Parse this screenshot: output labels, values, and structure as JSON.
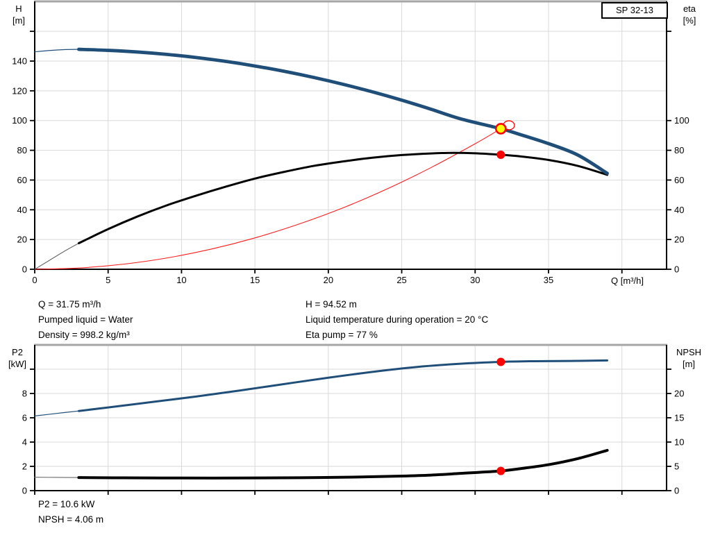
{
  "labels": {
    "model": "SP 32-13",
    "h_axis": [
      "H",
      "[m]"
    ],
    "eta_axis": [
      "eta",
      "[%]"
    ],
    "q_axis": "Q [m³/h]",
    "p2_axis": [
      "P2",
      "[kW]"
    ],
    "npsh_axis": [
      "NPSH",
      "[m]"
    ]
  },
  "colors": {
    "curve_blue": "#1F4E79",
    "curve_black": "#000000",
    "curve_red": "#ff1a1a",
    "marker_red": "#ff0000",
    "marker_yellow": "#ffff00",
    "grid": "#d9d9d9",
    "top_border": "#a6a6a6",
    "axis": "#000000"
  },
  "info": {
    "top_left": [
      "Q = 31.75 m³/h",
      "Pumped liquid = Water",
      "Density = 998.2 kg/m³"
    ],
    "top_right": [
      "H = 94.52 m",
      "Liquid temperature during operation = 20 °C",
      "Eta pump = 77 %"
    ],
    "bottom": [
      "P2 = 10.6 kW",
      "NPSH = 4.06 m"
    ]
  },
  "chart_data": [
    {
      "type": "line",
      "title": "SP 32-13 head and efficiency curves",
      "xlabel": "Q [m³/h]",
      "ylabel_left": "H [m]",
      "ylabel_right": "eta [%]",
      "x_range": [
        0,
        43
      ],
      "left_range": [
        0,
        180
      ],
      "right_range": [
        0,
        180
      ],
      "grid": true,
      "x_gridlines": [
        5,
        10,
        15,
        20,
        25,
        30,
        35,
        40
      ],
      "y_gridlines": [
        20,
        40,
        60,
        80,
        100,
        120,
        140,
        160
      ],
      "x_ticks": [
        {
          "q": 0,
          "label": "0"
        },
        {
          "q": 5,
          "label": "5"
        },
        {
          "q": 10,
          "label": "10"
        },
        {
          "q": 15,
          "label": "15"
        },
        {
          "q": 20,
          "label": "20"
        },
        {
          "q": 25,
          "label": "25"
        },
        {
          "q": 30,
          "label": "30"
        },
        {
          "q": 35,
          "label": "35"
        },
        {
          "q": 40
        }
      ],
      "left_ticks": [
        {
          "v": 0,
          "label": "0"
        },
        {
          "v": 20,
          "label": "20"
        },
        {
          "v": 40,
          "label": "40"
        },
        {
          "v": 60,
          "label": "60"
        },
        {
          "v": 80,
          "label": "80"
        },
        {
          "v": 100,
          "label": "100"
        },
        {
          "v": 120,
          "label": "120"
        },
        {
          "v": 140,
          "label": "140"
        },
        {
          "v": 160
        }
      ],
      "right_ticks": [
        {
          "v": 0,
          "label": "0"
        },
        {
          "v": 20,
          "label": "20"
        },
        {
          "v": 40,
          "label": "40"
        },
        {
          "v": 60,
          "label": "60"
        },
        {
          "v": 80,
          "label": "80"
        },
        {
          "v": 100,
          "label": "100"
        },
        {
          "v": 160
        }
      ],
      "series": [
        {
          "name": "system-curve",
          "axis": "left",
          "color": "#ff1a1a",
          "width": 1.1,
          "points": [
            [
              0,
              0
            ],
            [
              3,
              0.84
            ],
            [
              6,
              3.38
            ],
            [
              9,
              7.59
            ],
            [
              12,
              13.5
            ],
            [
              15,
              21.1
            ],
            [
              18,
              30.4
            ],
            [
              21,
              41.3
            ],
            [
              24,
              54.0
            ],
            [
              27,
              68.4
            ],
            [
              30,
              84.4
            ],
            [
              31.75,
              94.52
            ]
          ]
        },
        {
          "name": "efficiency-curve-leadin",
          "axis": "right",
          "color": "#555555",
          "width": 1,
          "points": [
            [
              0,
              0
            ],
            [
              1,
              6
            ],
            [
              2,
              12
            ],
            [
              3,
              17.5
            ]
          ]
        },
        {
          "name": "efficiency-curve",
          "axis": "right",
          "color": "#000000",
          "width": 3,
          "points": [
            [
              3,
              17.5
            ],
            [
              5,
              27
            ],
            [
              7,
              35.5
            ],
            [
              9,
              43
            ],
            [
              11,
              49.5
            ],
            [
              13,
              55.5
            ],
            [
              15,
              61
            ],
            [
              17,
              65.5
            ],
            [
              19,
              69.5
            ],
            [
              21,
              72.5
            ],
            [
              23,
              75
            ],
            [
              25,
              76.8
            ],
            [
              27,
              77.9
            ],
            [
              28.5,
              78.3
            ],
            [
              30,
              78
            ],
            [
              31.75,
              77
            ],
            [
              33,
              76
            ],
            [
              35,
              73.5
            ],
            [
              37,
              69.5
            ],
            [
              39,
              63.5
            ]
          ]
        },
        {
          "name": "head-curve-leadin",
          "axis": "left",
          "color": "#1F4E79",
          "width": 1.2,
          "points": [
            [
              0,
              146.2
            ],
            [
              1,
              147.1
            ],
            [
              2,
              147.7
            ],
            [
              3,
              147.9
            ]
          ]
        },
        {
          "name": "head-curve",
          "axis": "left",
          "color": "#1F4E79",
          "width": 4.8,
          "points": [
            [
              3,
              147.9
            ],
            [
              5,
              147.2
            ],
            [
              7,
              146.1
            ],
            [
              9,
              144.5
            ],
            [
              11,
              142.4
            ],
            [
              13,
              139.8
            ],
            [
              15,
              136.7
            ],
            [
              17,
              133.1
            ],
            [
              19,
              129.0
            ],
            [
              21,
              124.4
            ],
            [
              23,
              119.3
            ],
            [
              25,
              113.7
            ],
            [
              27,
              107.6
            ],
            [
              29,
              101.2
            ],
            [
              31.75,
              94.52
            ],
            [
              33,
              90.8
            ],
            [
              35,
              84.5
            ],
            [
              37,
              76.8
            ],
            [
              39,
              64.5
            ]
          ]
        }
      ],
      "markers": [
        {
          "name": "rated-point-ring",
          "axis": "left",
          "q": 32.3,
          "value": 96.8,
          "shape": "ellipse",
          "rx": 8,
          "ry": 6.5,
          "fill": "none",
          "stroke": "#ff0000",
          "w": 1.3,
          "interactable": false
        },
        {
          "name": "duty-point",
          "axis": "left",
          "q": 31.75,
          "value": 94.52,
          "shape": "circle",
          "r": 7,
          "fill": "#ffff00",
          "stroke": "#ff0000",
          "w": 2.6,
          "interactable": true
        },
        {
          "name": "efficiency-point",
          "axis": "right",
          "q": 31.75,
          "value": 77,
          "shape": "circle",
          "r": 6,
          "fill": "#ff0000",
          "stroke": "none",
          "w": 0,
          "interactable": false
        }
      ]
    },
    {
      "type": "line",
      "title": "SP 32-13 power and NPSH curves",
      "xlabel": "Q [m³/h]",
      "ylabel_left": "P2 [kW]",
      "ylabel_right": "NPSH [m]",
      "x_range": [
        0,
        43
      ],
      "left_range": [
        0,
        12
      ],
      "right_range": [
        0,
        30
      ],
      "grid": true,
      "x_gridlines": [
        5,
        10,
        15,
        20,
        25,
        30,
        35,
        40
      ],
      "y_gridlines": [
        2,
        4,
        6,
        8,
        10
      ],
      "x_ticks": [
        {
          "q": 0
        },
        {
          "q": 5
        },
        {
          "q": 10
        },
        {
          "q": 15
        },
        {
          "q": 20
        },
        {
          "q": 25
        },
        {
          "q": 30
        },
        {
          "q": 35
        },
        {
          "q": 40
        }
      ],
      "left_ticks": [
        {
          "v": 0,
          "label": "0"
        },
        {
          "v": 2,
          "label": "2"
        },
        {
          "v": 4,
          "label": "4"
        },
        {
          "v": 6,
          "label": "6"
        },
        {
          "v": 8,
          "label": "8"
        },
        {
          "v": 10
        }
      ],
      "right_ticks": [
        {
          "v": 0,
          "label": "0"
        },
        {
          "v": 5,
          "label": "5"
        },
        {
          "v": 10,
          "label": "10"
        },
        {
          "v": 15,
          "label": "15"
        },
        {
          "v": 20,
          "label": "20"
        },
        {
          "v": 25
        }
      ],
      "series": [
        {
          "name": "npsh-curve-leadin",
          "axis": "right",
          "color": "#777777",
          "width": 1.2,
          "points": [
            [
              0,
              2.77
            ],
            [
              1.5,
              2.73
            ],
            [
              3,
              2.7
            ]
          ]
        },
        {
          "name": "npsh-curve",
          "axis": "right",
          "color": "#000000",
          "width": 4,
          "points": [
            [
              3,
              2.7
            ],
            [
              6,
              2.64
            ],
            [
              10,
              2.6
            ],
            [
              14,
              2.6
            ],
            [
              18,
              2.66
            ],
            [
              22,
              2.8
            ],
            [
              25,
              3.0
            ],
            [
              27,
              3.2
            ],
            [
              29,
              3.55
            ],
            [
              31.75,
              4.06
            ],
            [
              33,
              4.5
            ],
            [
              35,
              5.35
            ],
            [
              37,
              6.6
            ],
            [
              39,
              8.3
            ]
          ]
        },
        {
          "name": "power-curve-leadin",
          "axis": "left",
          "color": "#1F4E79",
          "width": 1.2,
          "points": [
            [
              0,
              6.15
            ],
            [
              1.5,
              6.36
            ],
            [
              3,
              6.56
            ]
          ]
        },
        {
          "name": "power-curve",
          "axis": "left",
          "color": "#1F4E79",
          "width": 3,
          "points": [
            [
              3,
              6.56
            ],
            [
              5,
              6.85
            ],
            [
              8,
              7.3
            ],
            [
              11,
              7.75
            ],
            [
              14,
              8.25
            ],
            [
              17,
              8.78
            ],
            [
              20,
              9.3
            ],
            [
              23,
              9.78
            ],
            [
              26,
              10.18
            ],
            [
              29,
              10.45
            ],
            [
              31.75,
              10.6
            ],
            [
              34,
              10.66
            ],
            [
              36.5,
              10.68
            ],
            [
              39,
              10.72
            ]
          ]
        }
      ],
      "markers": [
        {
          "name": "power-point",
          "axis": "left",
          "q": 31.75,
          "value": 10.6,
          "shape": "circle",
          "r": 6,
          "fill": "#ff0000",
          "stroke": "none",
          "w": 0,
          "interactable": false
        },
        {
          "name": "npsh-point",
          "axis": "right",
          "q": 31.75,
          "value": 4.06,
          "shape": "circle",
          "r": 6,
          "fill": "#ff0000",
          "stroke": "none",
          "w": 0,
          "interactable": false
        }
      ]
    }
  ]
}
